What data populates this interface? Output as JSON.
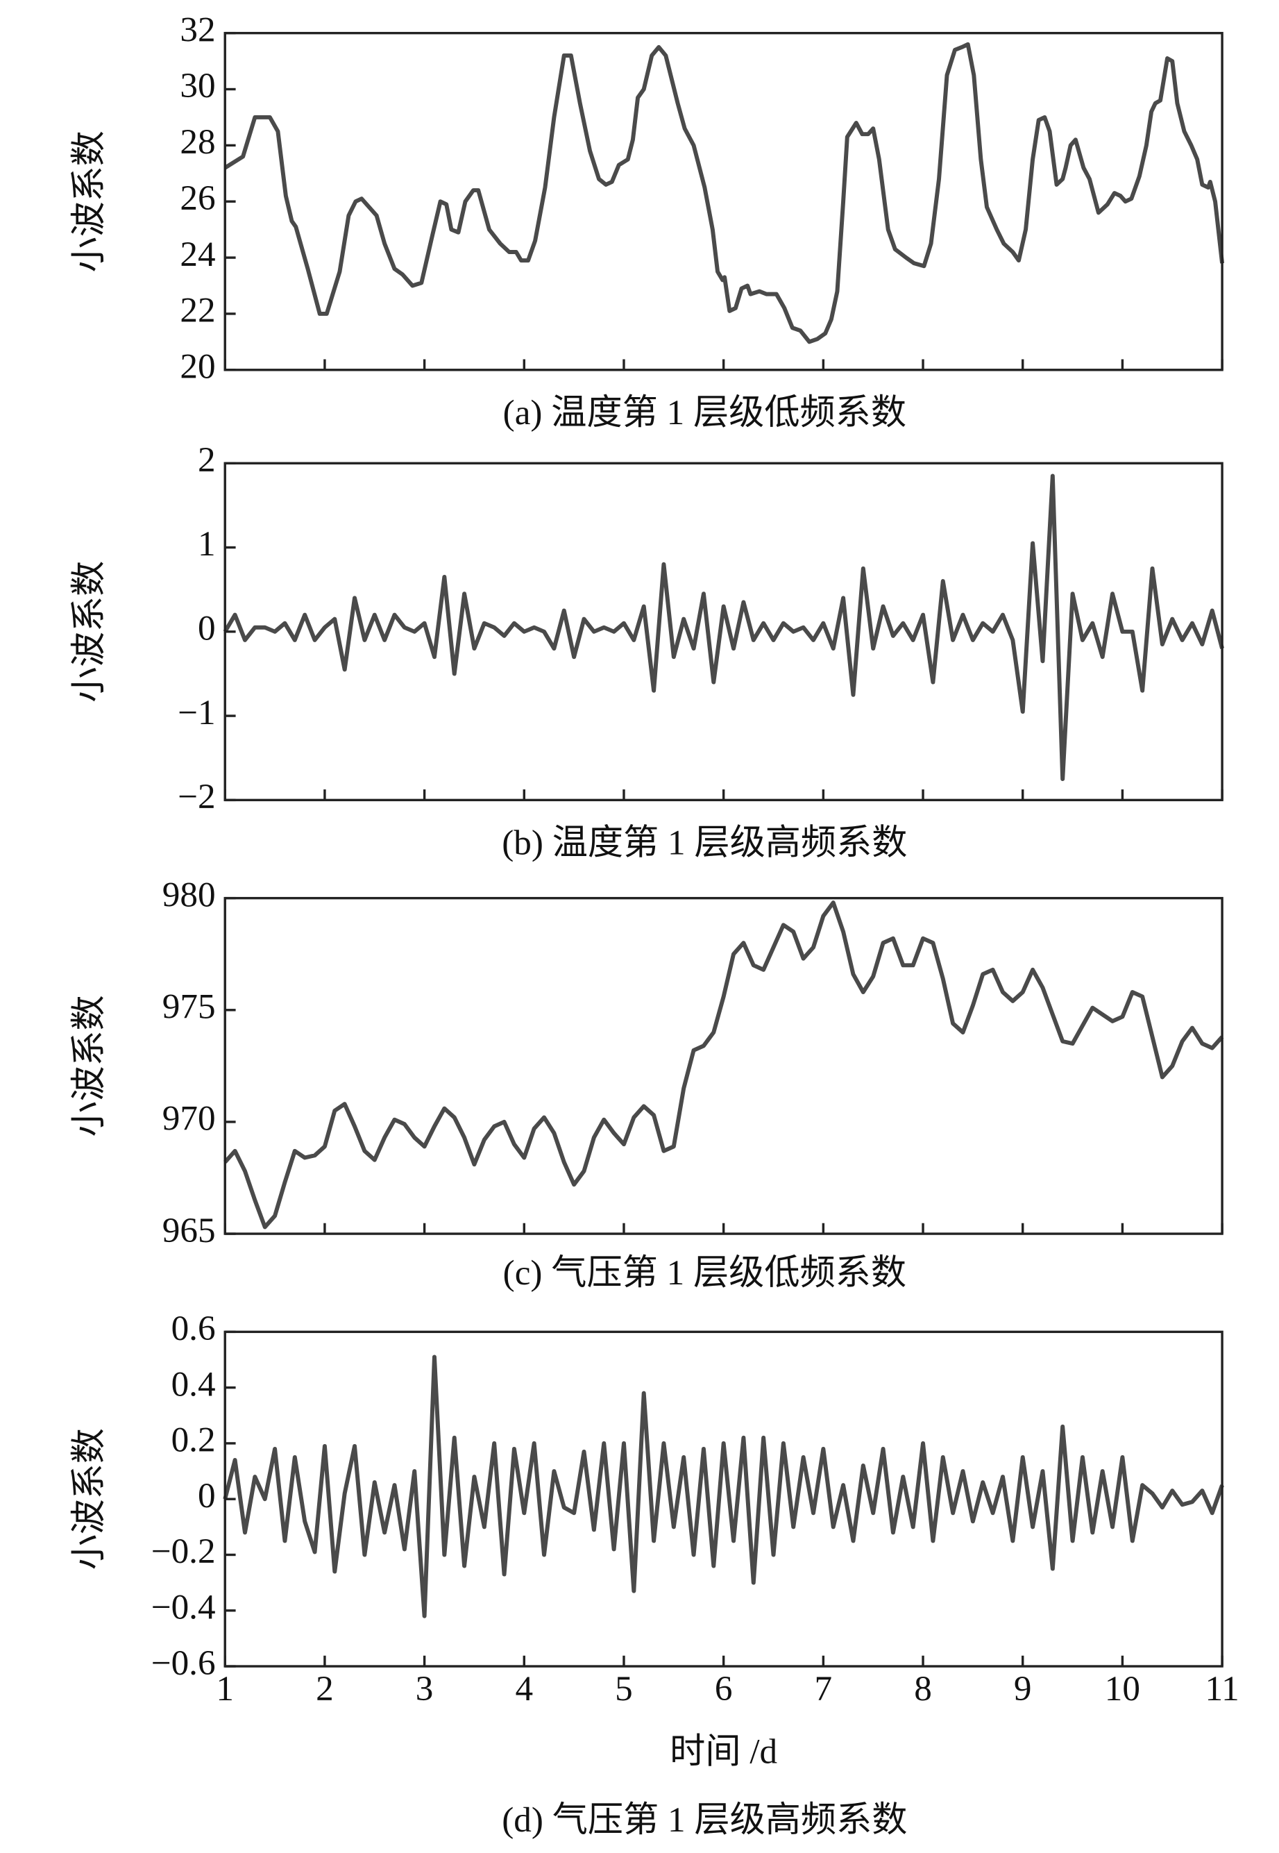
{
  "chart_data": [
    {
      "type": "line",
      "caption": "(a) 温度第 1 层级低频系数",
      "ylabel": "小波系数",
      "color": "#4a4a4a",
      "x": [
        1.0,
        1.18,
        1.3,
        1.45,
        1.53,
        1.61,
        1.67,
        1.71,
        1.83,
        1.95,
        2.02,
        2.15,
        2.24,
        2.31,
        2.37,
        2.52,
        2.6,
        2.7,
        2.78,
        2.88,
        2.97,
        3.08,
        3.16,
        3.22,
        3.27,
        3.34,
        3.41,
        3.49,
        3.54,
        3.65,
        3.76,
        3.85,
        3.92,
        3.97,
        4.04,
        4.11,
        4.21,
        4.3,
        4.4,
        4.47,
        4.56,
        4.66,
        4.75,
        4.82,
        4.88,
        4.95,
        5.04,
        5.09,
        5.14,
        5.2,
        5.28,
        5.35,
        5.42,
        5.54,
        5.61,
        5.7,
        5.81,
        5.89,
        5.94,
        5.99,
        6.01,
        6.06,
        6.12,
        6.18,
        6.24,
        6.27,
        6.36,
        6.43,
        6.53,
        6.61,
        6.69,
        6.77,
        6.86,
        6.94,
        7.02,
        7.08,
        7.14,
        7.2,
        7.24,
        7.33,
        7.39,
        7.45,
        7.5,
        7.56,
        7.65,
        7.72,
        7.83,
        7.91,
        8.01,
        8.08,
        8.16,
        8.24,
        8.32,
        8.39,
        8.45,
        8.51,
        8.58,
        8.64,
        8.74,
        8.81,
        8.9,
        8.96,
        9.03,
        9.1,
        9.16,
        9.22,
        9.27,
        9.34,
        9.4,
        9.43,
        9.48,
        9.53,
        9.61,
        9.67,
        9.76,
        9.85,
        9.92,
        9.98,
        10.03,
        10.09,
        10.17,
        10.24,
        10.29,
        10.33,
        10.38,
        10.45,
        10.5,
        10.55,
        10.62,
        10.69,
        10.75,
        10.8,
        10.86,
        10.88,
        10.93,
        11.0
      ],
      "values": [
        27.2,
        27.6,
        29.0,
        29.0,
        28.5,
        26.2,
        25.3,
        25.1,
        23.6,
        22.0,
        22.0,
        23.5,
        25.5,
        26.0,
        26.1,
        25.5,
        24.5,
        23.6,
        23.4,
        23.0,
        23.1,
        24.8,
        26.0,
        25.9,
        25.0,
        24.9,
        26.0,
        26.4,
        26.4,
        25.0,
        24.5,
        24.2,
        24.2,
        23.9,
        23.9,
        24.6,
        26.5,
        29.0,
        31.2,
        31.2,
        29.5,
        27.8,
        26.8,
        26.6,
        26.7,
        27.3,
        27.5,
        28.2,
        29.7,
        30.0,
        31.2,
        31.5,
        31.2,
        29.5,
        28.6,
        28.0,
        26.5,
        25.0,
        23.5,
        23.2,
        23.3,
        22.1,
        22.2,
        22.9,
        23.0,
        22.7,
        22.8,
        22.7,
        22.7,
        22.2,
        21.5,
        21.4,
        21.0,
        21.1,
        21.3,
        21.8,
        22.8,
        26.0,
        28.3,
        28.8,
        28.4,
        28.4,
        28.6,
        27.5,
        25.0,
        24.3,
        24.0,
        23.8,
        23.7,
        24.5,
        26.8,
        30.5,
        31.4,
        31.5,
        31.6,
        30.5,
        27.5,
        25.8,
        25.0,
        24.5,
        24.2,
        23.9,
        25.0,
        27.5,
        28.9,
        29.0,
        28.5,
        26.6,
        26.8,
        27.2,
        28.0,
        28.2,
        27.2,
        26.8,
        25.6,
        25.9,
        26.3,
        26.2,
        26.0,
        26.1,
        26.9,
        28.0,
        29.2,
        29.5,
        29.6,
        31.1,
        31.0,
        29.5,
        28.5,
        28.0,
        27.5,
        26.6,
        26.5,
        26.7,
        26.0,
        23.8
      ],
      "xlim": [
        1,
        11
      ],
      "xticks": [
        1,
        2,
        3,
        4,
        5,
        6,
        7,
        8,
        9,
        10,
        11
      ],
      "ylim": [
        20,
        32
      ],
      "yticks": [
        20,
        22,
        24,
        26,
        28,
        30,
        32
      ]
    },
    {
      "type": "line",
      "caption": "(b) 温度第 1 层级高频系数",
      "ylabel": "小波系数",
      "color": "#4a4a4a",
      "x": [
        1,
        1.1,
        1.2,
        1.3,
        1.4,
        1.5,
        1.6,
        1.7,
        1.8,
        1.9,
        2,
        2.1,
        2.2,
        2.3,
        2.4,
        2.5,
        2.6,
        2.7,
        2.8,
        2.9,
        3,
        3.1,
        3.2,
        3.3,
        3.4,
        3.5,
        3.6,
        3.7,
        3.8,
        3.9,
        4,
        4.1,
        4.2,
        4.3,
        4.4,
        4.5,
        4.6,
        4.7,
        4.8,
        4.9,
        5,
        5.1,
        5.2,
        5.3,
        5.4,
        5.5,
        5.6,
        5.7,
        5.8,
        5.9,
        6,
        6.1,
        6.2,
        6.3,
        6.4,
        6.5,
        6.6,
        6.7,
        6.8,
        6.9,
        7,
        7.1,
        7.2,
        7.3,
        7.4,
        7.5,
        7.6,
        7.7,
        7.8,
        7.9,
        8,
        8.1,
        8.2,
        8.3,
        8.4,
        8.5,
        8.6,
        8.7,
        8.8,
        8.9,
        9,
        9.1,
        9.2,
        9.3,
        9.4,
        9.5,
        9.6,
        9.7,
        9.8,
        9.9,
        10,
        10.1,
        10.2,
        10.3,
        10.4,
        10.5,
        10.6,
        10.7,
        10.8,
        10.9,
        11
      ],
      "values": [
        0,
        0.2,
        -0.1,
        0.05,
        0.05,
        0,
        0.1,
        -0.1,
        0.2,
        -0.1,
        0.05,
        0.15,
        -0.45,
        0.4,
        -0.1,
        0.2,
        -0.1,
        0.2,
        0.05,
        0,
        0.1,
        -0.3,
        0.65,
        -0.5,
        0.45,
        -0.2,
        0.1,
        0.05,
        -0.05,
        0.1,
        0,
        0.05,
        0,
        -0.2,
        0.25,
        -0.3,
        0.15,
        0,
        0.05,
        0,
        0.1,
        -0.1,
        0.3,
        -0.7,
        0.8,
        -0.3,
        0.15,
        -0.2,
        0.45,
        -0.6,
        0.3,
        -0.2,
        0.35,
        -0.1,
        0.1,
        -0.1,
        0.1,
        0,
        0.05,
        -0.1,
        0.1,
        -0.2,
        0.4,
        -0.75,
        0.75,
        -0.2,
        0.3,
        -0.05,
        0.1,
        -0.1,
        0.2,
        -0.6,
        0.6,
        -0.1,
        0.2,
        -0.1,
        0.1,
        0,
        0.2,
        -0.1,
        -0.95,
        1.05,
        -0.35,
        1.85,
        -1.75,
        0.45,
        -0.1,
        0.1,
        -0.3,
        0.45,
        0,
        0,
        -0.7,
        0.75,
        -0.15,
        0.15,
        -0.1,
        0.1,
        -0.15,
        0.25,
        -0.2
      ],
      "xlim": [
        1,
        11
      ],
      "xticks": [
        1,
        2,
        3,
        4,
        5,
        6,
        7,
        8,
        9,
        10,
        11
      ],
      "ylim": [
        -2,
        2
      ],
      "yticks": [
        {
          "value": -2,
          "label": "−2"
        },
        {
          "value": -1,
          "label": "−1"
        },
        0,
        1,
        2
      ]
    },
    {
      "type": "line",
      "caption": "(c) 气压第 1 层级低频系数",
      "ylabel": "小波系数",
      "color": "#4a4a4a",
      "x": [
        1,
        1.1,
        1.2,
        1.3,
        1.4,
        1.5,
        1.6,
        1.7,
        1.8,
        1.9,
        2,
        2.1,
        2.2,
        2.3,
        2.4,
        2.5,
        2.6,
        2.7,
        2.8,
        2.9,
        3,
        3.1,
        3.2,
        3.3,
        3.4,
        3.5,
        3.6,
        3.7,
        3.8,
        3.9,
        4,
        4.1,
        4.2,
        4.3,
        4.4,
        4.5,
        4.6,
        4.7,
        4.8,
        4.9,
        5,
        5.1,
        5.2,
        5.3,
        5.4,
        5.5,
        5.6,
        5.7,
        5.8,
        5.9,
        6,
        6.1,
        6.2,
        6.3,
        6.4,
        6.5,
        6.6,
        6.7,
        6.8,
        6.9,
        7,
        7.1,
        7.2,
        7.3,
        7.4,
        7.5,
        7.6,
        7.7,
        7.8,
        7.9,
        8,
        8.1,
        8.2,
        8.3,
        8.4,
        8.5,
        8.6,
        8.7,
        8.8,
        8.9,
        9,
        9.1,
        9.2,
        9.3,
        9.4,
        9.5,
        9.6,
        9.7,
        9.8,
        9.9,
        10,
        10.1,
        10.2,
        10.3,
        10.4,
        10.5,
        10.6,
        10.7,
        10.8,
        10.9,
        11
      ],
      "values": [
        968.2,
        968.7,
        967.8,
        966.5,
        965.3,
        965.8,
        967.3,
        968.7,
        968.4,
        968.5,
        968.9,
        970.5,
        970.8,
        969.8,
        968.7,
        968.3,
        969.3,
        970.1,
        969.9,
        969.3,
        968.9,
        969.8,
        970.6,
        970.2,
        969.3,
        968.1,
        969.2,
        969.8,
        970.0,
        969.0,
        968.4,
        969.7,
        970.2,
        969.5,
        968.2,
        967.2,
        967.8,
        969.3,
        970.1,
        969.5,
        969.0,
        970.2,
        970.7,
        970.3,
        968.7,
        968.9,
        971.5,
        973.2,
        973.4,
        974.0,
        975.6,
        977.5,
        978.0,
        977.0,
        976.8,
        977.8,
        978.8,
        978.5,
        977.3,
        977.8,
        979.2,
        979.8,
        978.5,
        976.6,
        975.8,
        976.5,
        978.0,
        978.2,
        977.0,
        977.0,
        978.2,
        978.0,
        976.4,
        974.4,
        974.0,
        975.2,
        976.6,
        976.8,
        975.8,
        975.4,
        975.8,
        976.8,
        976.0,
        974.8,
        973.6,
        973.5,
        974.3,
        975.1,
        974.8,
        974.5,
        974.7,
        975.8,
        975.6,
        973.8,
        972.0,
        972.5,
        973.6,
        974.2,
        973.5,
        973.3,
        973.8
      ],
      "xlim": [
        1,
        11
      ],
      "xticks": [
        1,
        2,
        3,
        4,
        5,
        6,
        7,
        8,
        9,
        10,
        11
      ],
      "ylim": [
        965,
        980
      ],
      "yticks": [
        965,
        970,
        975,
        980
      ]
    },
    {
      "type": "line",
      "caption": "(d) 气压第 1 层级高频系数",
      "ylabel": "小波系数",
      "xlabel": "时间 /d",
      "color": "#4a4a4a",
      "x": [
        1,
        1.1,
        1.2,
        1.3,
        1.4,
        1.5,
        1.6,
        1.7,
        1.8,
        1.9,
        2,
        2.1,
        2.2,
        2.3,
        2.4,
        2.5,
        2.6,
        2.7,
        2.8,
        2.9,
        3,
        3.1,
        3.2,
        3.3,
        3.4,
        3.5,
        3.6,
        3.7,
        3.8,
        3.9,
        4,
        4.1,
        4.2,
        4.3,
        4.4,
        4.5,
        4.6,
        4.7,
        4.8,
        4.9,
        5,
        5.1,
        5.2,
        5.3,
        5.4,
        5.5,
        5.6,
        5.7,
        5.8,
        5.9,
        6,
        6.1,
        6.2,
        6.3,
        6.4,
        6.5,
        6.6,
        6.7,
        6.8,
        6.9,
        7,
        7.1,
        7.2,
        7.3,
        7.4,
        7.5,
        7.6,
        7.7,
        7.8,
        7.9,
        8,
        8.1,
        8.2,
        8.3,
        8.4,
        8.5,
        8.6,
        8.7,
        8.8,
        8.9,
        9,
        9.1,
        9.2,
        9.3,
        9.4,
        9.5,
        9.6,
        9.7,
        9.8,
        9.9,
        10,
        10.1,
        10.2,
        10.3,
        10.4,
        10.5,
        10.6,
        10.7,
        10.8,
        10.9,
        11
      ],
      "values": [
        0,
        0.14,
        -0.12,
        0.08,
        0,
        0.18,
        -0.15,
        0.15,
        -0.08,
        -0.19,
        0.19,
        -0.26,
        0.02,
        0.19,
        -0.2,
        0.06,
        -0.12,
        0.05,
        -0.18,
        0.1,
        -0.42,
        0.51,
        -0.2,
        0.22,
        -0.24,
        0.08,
        -0.1,
        0.2,
        -0.27,
        0.18,
        -0.05,
        0.2,
        -0.2,
        0.1,
        -0.03,
        -0.05,
        0.17,
        -0.11,
        0.2,
        -0.18,
        0.2,
        -0.33,
        0.38,
        -0.15,
        0.2,
        -0.1,
        0.15,
        -0.2,
        0.18,
        -0.24,
        0.2,
        -0.15,
        0.22,
        -0.3,
        0.22,
        -0.2,
        0.2,
        -0.1,
        0.15,
        -0.05,
        0.18,
        -0.1,
        0.05,
        -0.15,
        0.12,
        -0.05,
        0.18,
        -0.12,
        0.08,
        -0.1,
        0.2,
        -0.15,
        0.15,
        -0.05,
        0.1,
        -0.08,
        0.06,
        -0.05,
        0.08,
        -0.15,
        0.15,
        -0.1,
        0.1,
        -0.25,
        0.26,
        -0.15,
        0.15,
        -0.12,
        0.1,
        -0.1,
        0.15,
        -0.15,
        0.05,
        0.02,
        -0.03,
        0.03,
        -0.02,
        -0.01,
        0.03,
        -0.05,
        0.05
      ],
      "xlim": [
        1,
        11
      ],
      "xticks": [
        1,
        2,
        3,
        4,
        5,
        6,
        7,
        8,
        9,
        10,
        11
      ],
      "ylim": [
        -0.6,
        0.6
      ],
      "yticks": [
        {
          "value": -0.6,
          "label": "−0.6"
        },
        {
          "value": -0.4,
          "label": "−0.4"
        },
        {
          "value": -0.2,
          "label": "−0.2"
        },
        0,
        0.2,
        0.4,
        0.6
      ]
    }
  ]
}
